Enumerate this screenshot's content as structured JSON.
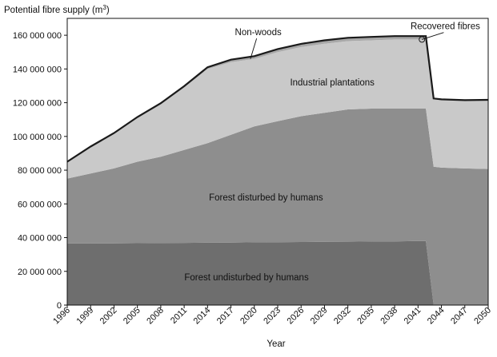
{
  "chart_data": {
    "type": "area",
    "stacked": true,
    "ylabel": "Potential fibre supply (m3)",
    "ylabel_main": "Potential fibre supply (m",
    "ylabel_sup": "3",
    "ylabel_close": ")",
    "xlabel": "Year",
    "xlim": [
      1996,
      2050
    ],
    "ylim": [
      0,
      170000000
    ],
    "grid": false,
    "x_ticks": [
      "1996",
      "1999",
      "2002",
      "2005",
      "2008",
      "2011",
      "2014",
      "2017",
      "2020",
      "2023",
      "2026",
      "2029",
      "2032",
      "2035",
      "2038",
      "2041",
      "2044",
      "2047",
      "2050"
    ],
    "y_ticks": [
      "0",
      "20 000 000",
      "40 000 000",
      "60 000 000",
      "80 000 000",
      "100 000 000",
      "120 000 000",
      "140 000 000",
      "160 000 000"
    ],
    "x": [
      1996,
      1999,
      2002,
      2005,
      2008,
      2011,
      2014,
      2017,
      2020,
      2023,
      2026,
      2029,
      2032,
      2035,
      2038,
      2041,
      2042,
      2043,
      2044,
      2047,
      2050
    ],
    "series": [
      {
        "name": "Forest undisturbed by humans",
        "color": "#6e6e6e",
        "values": [
          36500000,
          36500000,
          36600000,
          36700000,
          36800000,
          36900000,
          37000000,
          37100000,
          37200000,
          37300000,
          37400000,
          37500000,
          37600000,
          37700000,
          37800000,
          38000000,
          38000000,
          0,
          0,
          0,
          0
        ]
      },
      {
        "name": "Forest disturbed by humans",
        "color": "#8e8e8e",
        "values": [
          38500000,
          41500000,
          44400000,
          48300000,
          51200000,
          55100000,
          59000000,
          63900000,
          68800000,
          71700000,
          74600000,
          76500000,
          78400000,
          78800000,
          78700000,
          78500000,
          78500000,
          82000000,
          81500000,
          81000000,
          80700000
        ]
      },
      {
        "name": "Industrial plantations",
        "color": "#c9c9c9",
        "values": [
          10000000,
          16000000,
          21000000,
          26000000,
          31000000,
          37000000,
          44000000,
          43000000,
          40000000,
          41000000,
          41000000,
          41000000,
          40500000,
          40500000,
          41000000,
          41000000,
          41000000,
          40500000,
          40500000,
          40500000,
          41000000
        ]
      },
      {
        "name": "Non-woods",
        "color": "#a8a8a8",
        "values": [
          0,
          0,
          0,
          500000,
          700000,
          800000,
          1000000,
          1500000,
          1600000,
          1800000,
          1900000,
          2000000,
          2000000,
          2000000,
          2000000,
          2000000,
          2000000,
          0,
          0,
          0,
          0
        ]
      }
    ],
    "band_labels": [
      {
        "text": "Forest undisturbed by humans",
        "x": 2019,
        "y": 16500000
      },
      {
        "text": "Forest disturbed by humans",
        "x": 2021.5,
        "y": 64000000
      },
      {
        "text": "Industrial plantations",
        "x": 2030,
        "y": 132000000
      }
    ],
    "annotations": [
      {
        "text": "Non-woods",
        "label_x": 2020.5,
        "label_y": 160000000,
        "target_x": 2019.5,
        "target_y": 146000000
      },
      {
        "text": "Recovered fibres",
        "label_x": 2044.5,
        "label_y": 163500000,
        "target_x": 2041.5,
        "target_y": 157500000
      }
    ]
  }
}
